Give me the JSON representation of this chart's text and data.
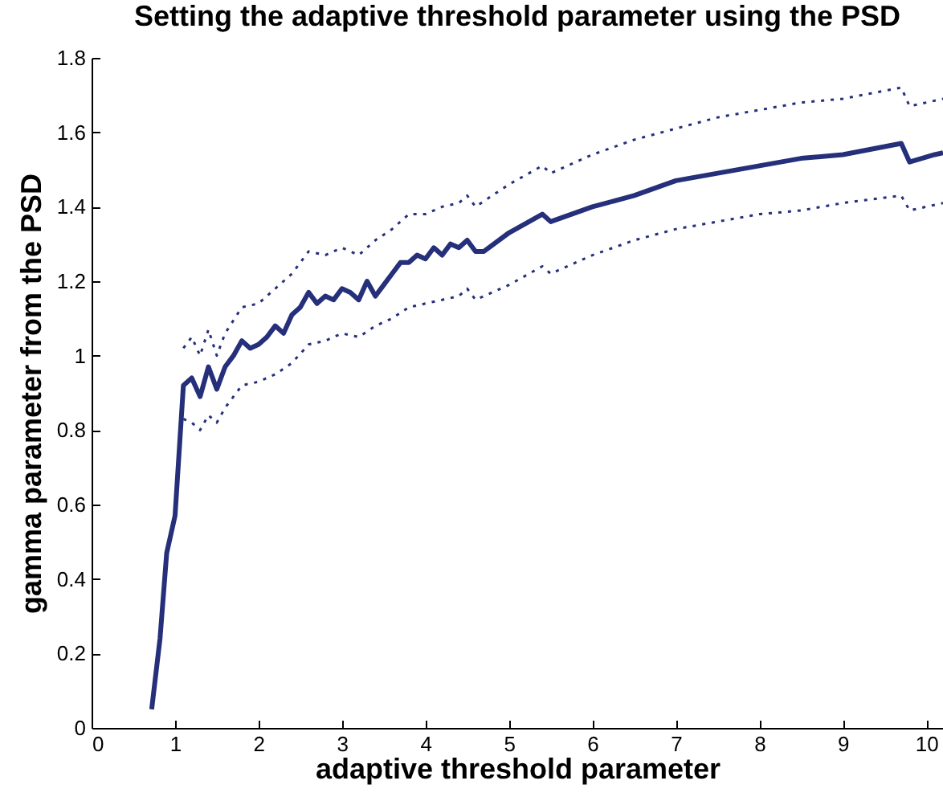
{
  "chart_data": {
    "type": "line",
    "title": "Setting the adaptive threshold parameter using the PSD",
    "xlabel": "adaptive threshold parameter",
    "ylabel": "gamma parameter from the PSD",
    "xlim": [
      0,
      10.2
    ],
    "ylim": [
      0,
      1.8
    ],
    "xticks": [
      0,
      1,
      2,
      3,
      4,
      5,
      6,
      7,
      8,
      9,
      10
    ],
    "yticks": [
      0,
      0.2,
      0.4,
      0.6,
      0.8,
      1,
      1.2,
      1.4,
      1.6,
      1.8
    ],
    "grid": false,
    "legend": false,
    "marker": "none",
    "series": [
      {
        "color": "#252f7a",
        "line_style": "solid",
        "x": [
          0.72,
          0.82,
          0.9,
          1.0,
          1.1,
          1.2,
          1.3,
          1.4,
          1.5,
          1.6,
          1.7,
          1.8,
          1.9,
          2.0,
          2.1,
          2.2,
          2.3,
          2.4,
          2.5,
          2.6,
          2.7,
          2.8,
          2.9,
          3.0,
          3.1,
          3.2,
          3.3,
          3.4,
          3.5,
          3.6,
          3.7,
          3.8,
          3.9,
          4.0,
          4.1,
          4.2,
          4.3,
          4.4,
          4.5,
          4.6,
          4.7,
          5.0,
          5.4,
          5.5,
          6.0,
          6.5,
          7.0,
          7.5,
          8.0,
          8.5,
          9.0,
          9.7,
          9.8,
          10.1,
          10.2
        ],
        "values": [
          0.05,
          0.24,
          0.47,
          0.57,
          0.92,
          0.94,
          0.89,
          0.97,
          0.91,
          0.97,
          1.0,
          1.04,
          1.02,
          1.03,
          1.05,
          1.08,
          1.06,
          1.11,
          1.13,
          1.17,
          1.14,
          1.16,
          1.15,
          1.18,
          1.17,
          1.15,
          1.2,
          1.16,
          1.19,
          1.22,
          1.25,
          1.25,
          1.27,
          1.26,
          1.29,
          1.27,
          1.3,
          1.29,
          1.31,
          1.28,
          1.28,
          1.33,
          1.38,
          1.36,
          1.4,
          1.43,
          1.47,
          1.49,
          1.51,
          1.53,
          1.54,
          1.57,
          1.52,
          1.54,
          1.545
        ]
      },
      {
        "color": "#252f7a",
        "line_style": "dotted",
        "x": [
          1.1,
          1.2,
          1.3,
          1.4,
          1.5,
          1.6,
          1.8,
          2.0,
          2.2,
          2.4,
          2.6,
          2.8,
          3.0,
          3.2,
          3.4,
          3.6,
          3.8,
          4.0,
          4.2,
          4.4,
          4.5,
          4.6,
          5.0,
          5.4,
          5.5,
          6.0,
          6.5,
          7.0,
          7.5,
          8.0,
          8.5,
          9.0,
          9.7,
          9.8,
          10.2
        ],
        "values": [
          1.02,
          1.05,
          1.0,
          1.07,
          1.0,
          1.06,
          1.13,
          1.14,
          1.18,
          1.22,
          1.28,
          1.27,
          1.29,
          1.27,
          1.31,
          1.34,
          1.38,
          1.38,
          1.4,
          1.41,
          1.43,
          1.4,
          1.46,
          1.51,
          1.49,
          1.54,
          1.58,
          1.61,
          1.64,
          1.66,
          1.68,
          1.69,
          1.72,
          1.67,
          1.69
        ]
      },
      {
        "color": "#252f7a",
        "line_style": "dotted",
        "x": [
          1.1,
          1.2,
          1.3,
          1.4,
          1.5,
          1.6,
          1.8,
          2.0,
          2.2,
          2.4,
          2.6,
          2.8,
          3.0,
          3.2,
          3.4,
          3.6,
          3.8,
          4.0,
          4.2,
          4.4,
          4.5,
          4.6,
          5.0,
          5.4,
          5.5,
          6.0,
          6.5,
          7.0,
          7.5,
          8.0,
          8.5,
          9.0,
          9.7,
          9.8,
          10.2
        ],
        "values": [
          0.83,
          0.82,
          0.8,
          0.84,
          0.82,
          0.86,
          0.92,
          0.93,
          0.95,
          0.98,
          1.03,
          1.04,
          1.06,
          1.05,
          1.08,
          1.1,
          1.13,
          1.14,
          1.15,
          1.16,
          1.18,
          1.15,
          1.19,
          1.24,
          1.22,
          1.27,
          1.31,
          1.34,
          1.36,
          1.38,
          1.39,
          1.41,
          1.43,
          1.39,
          1.41
        ]
      }
    ]
  }
}
